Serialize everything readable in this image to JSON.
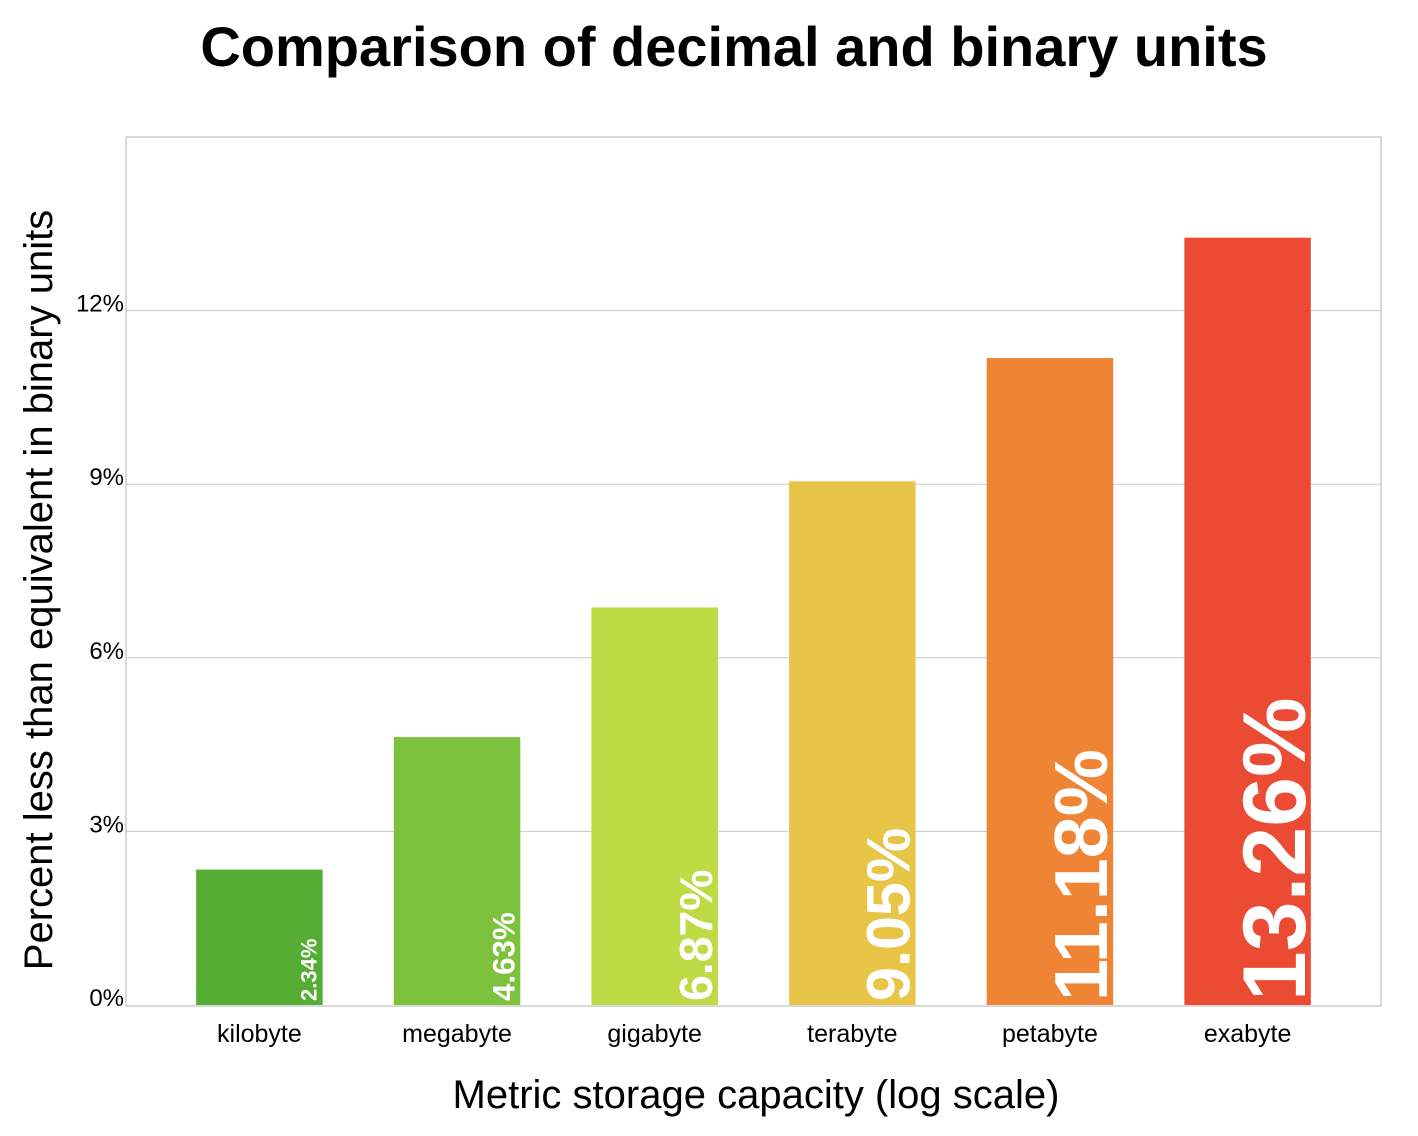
{
  "chart_data": {
    "type": "bar",
    "title": "Comparison of decimal and binary units",
    "xlabel": "Metric storage capacity (log scale)",
    "ylabel": "Percent less than equivalent in binary units",
    "categories": [
      "kilobyte",
      "megabyte",
      "gigabyte",
      "terabyte",
      "petabyte",
      "exabyte"
    ],
    "values": [
      2.34,
      4.63,
      6.87,
      9.05,
      11.18,
      13.26
    ],
    "data_labels": [
      "2.34%",
      "4.63%",
      "6.87%",
      "9.05%",
      "11.18%",
      "13.26%"
    ],
    "colors": [
      "#55ae33",
      "#7cc23c",
      "#bcdb44",
      "#e8c547",
      "#ef8534",
      "#eb4b33"
    ],
    "ylim": [
      0,
      15
    ],
    "yticks": [
      0,
      3,
      6,
      9,
      12
    ],
    "ytick_labels": [
      "0%",
      "3%",
      "6%",
      "9%",
      "12%"
    ],
    "grid": true,
    "legend": "none"
  }
}
